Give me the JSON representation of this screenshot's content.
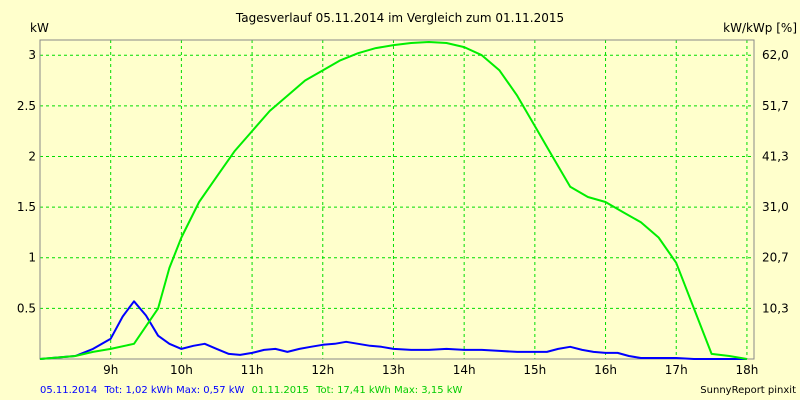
{
  "chart_data": {
    "type": "line",
    "title": "Tagesverlauf 05.11.2014 im Vergleich zum 01.11.2015",
    "ylabel_left": "kW",
    "ylabel_right": "kW/kWp [%]",
    "x_ticks": [
      "9h",
      "10h",
      "11h",
      "12h",
      "13h",
      "14h",
      "15h",
      "16h",
      "17h",
      "18h"
    ],
    "y_ticks_left": [
      "0.5",
      "1",
      "1.5",
      "2",
      "2.5",
      "3"
    ],
    "y_ticks_right": [
      "10,3",
      "20,7",
      "31,0",
      "41,3",
      "51,7",
      "62,0"
    ],
    "xlim": [
      8.0,
      18.1
    ],
    "ylim": [
      0,
      3.15
    ],
    "grid": true,
    "series": [
      {
        "name": "05.11.2014",
        "color": "#0000ff",
        "x": [
          8.0,
          8.5,
          8.75,
          9.0,
          9.17,
          9.33,
          9.5,
          9.67,
          9.83,
          10.0,
          10.17,
          10.33,
          10.5,
          10.67,
          10.83,
          11.0,
          11.17,
          11.33,
          11.5,
          11.67,
          11.83,
          12.0,
          12.17,
          12.33,
          12.5,
          12.67,
          12.83,
          13.0,
          13.25,
          13.5,
          13.75,
          14.0,
          14.25,
          14.5,
          14.75,
          15.0,
          15.17,
          15.33,
          15.5,
          15.67,
          15.83,
          16.0,
          16.17,
          16.33,
          16.5,
          16.75,
          17.0,
          17.25,
          17.5,
          17.75,
          18.0
        ],
        "y": [
          0,
          0.03,
          0.1,
          0.2,
          0.42,
          0.57,
          0.43,
          0.23,
          0.15,
          0.1,
          0.13,
          0.15,
          0.1,
          0.05,
          0.04,
          0.06,
          0.09,
          0.1,
          0.07,
          0.1,
          0.12,
          0.14,
          0.15,
          0.17,
          0.15,
          0.13,
          0.12,
          0.1,
          0.09,
          0.09,
          0.1,
          0.09,
          0.09,
          0.08,
          0.07,
          0.07,
          0.07,
          0.1,
          0.12,
          0.09,
          0.07,
          0.06,
          0.06,
          0.03,
          0.01,
          0.01,
          0.01,
          0,
          0,
          0,
          0
        ]
      },
      {
        "name": "01.11.2015",
        "color": "#00ee00",
        "x": [
          8.0,
          8.5,
          8.75,
          9.0,
          9.33,
          9.67,
          9.83,
          10.0,
          10.25,
          10.5,
          10.75,
          11.0,
          11.25,
          11.5,
          11.75,
          12.0,
          12.25,
          12.5,
          12.75,
          13.0,
          13.25,
          13.5,
          13.75,
          14.0,
          14.25,
          14.5,
          14.75,
          15.0,
          15.25,
          15.5,
          15.75,
          16.0,
          16.25,
          16.5,
          16.75,
          17.0,
          17.25,
          17.5,
          17.75,
          18.0
        ],
        "y": [
          0,
          0.03,
          0.07,
          0.1,
          0.15,
          0.5,
          0.9,
          1.2,
          1.55,
          1.8,
          2.05,
          2.25,
          2.45,
          2.6,
          2.75,
          2.85,
          2.95,
          3.02,
          3.07,
          3.1,
          3.12,
          3.13,
          3.12,
          3.08,
          3.0,
          2.85,
          2.6,
          2.3,
          2.0,
          1.7,
          1.6,
          1.55,
          1.45,
          1.35,
          1.2,
          0.95,
          0.5,
          0.05,
          0.03,
          0
        ]
      }
    ]
  },
  "legend": {
    "series1_label": "05.11.2014",
    "series1_stats": "Tot: 1,02 kWh Max: 0,57 kW",
    "series2_label": "01.11.2015",
    "series2_stats": "Tot: 17,41 kWh Max: 3,15 kW"
  },
  "credit": "SunnyReport pinxit",
  "colors": {
    "background": "#ffffcc",
    "grid": "#00dd00",
    "series1": "#0000ff",
    "series2": "#00ee00"
  }
}
